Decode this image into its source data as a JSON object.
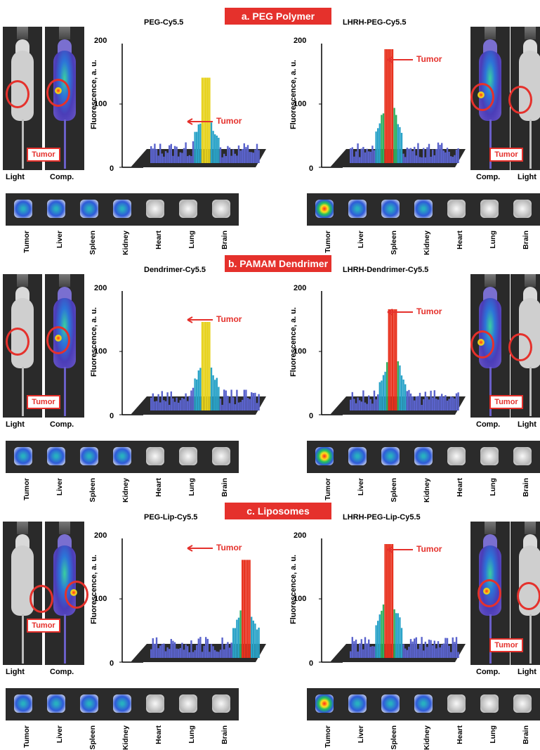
{
  "figure": {
    "y_axis_label": "Fluorescence, a. u.",
    "tumor_label": "Tumor",
    "light_label": "Light",
    "comp_label": "Comp.",
    "organs": [
      "Tumor",
      "Liver",
      "Spleen",
      "Kidney",
      "Heart",
      "Lung",
      "Brain"
    ],
    "y_ticks": [
      "0",
      "100",
      "200"
    ],
    "colors": {
      "accent": "#e5312c",
      "strip": "#2b2b2b"
    },
    "sections": [
      {
        "banner": "a.    PEG Polymer",
        "left_plot": {
          "title": "PEG-Cy5.5"
        },
        "right_plot": {
          "title": "LHRH-PEG-Cy5.5"
        }
      },
      {
        "banner": "b.    PAMAM Dendrimer",
        "left_plot": {
          "title": "Dendrimer-Cy5.5"
        },
        "right_plot": {
          "title": "LHRH-Dendrimer-Cy5.5"
        }
      },
      {
        "banner": "c.    Liposomes",
        "left_plot": {
          "title": "PEG-Lip-Cy5.5"
        },
        "right_plot": {
          "title": "LHRH-PEG-Lip-Cy5.5"
        }
      }
    ]
  },
  "chart_data": [
    {
      "type": "area",
      "title": "PEG-Cy5.5",
      "ylabel": "Fluorescence, a. u.",
      "ylim": [
        0,
        200
      ],
      "peak_tumor": 135,
      "peak_label": "Tumor",
      "annotation_y": 72
    },
    {
      "type": "area",
      "title": "LHRH-PEG-Cy5.5",
      "ylabel": "Fluorescence, a. u.",
      "ylim": [
        0,
        200
      ],
      "peak_tumor": 180,
      "peak_label": "Tumor",
      "annotation_y": 170
    },
    {
      "type": "area",
      "title": "Dendrimer-Cy5.5",
      "ylabel": "Fluorescence, a. u.",
      "ylim": [
        0,
        200
      ],
      "peak_tumor": 140,
      "peak_label": "Tumor",
      "annotation_y": 150
    },
    {
      "type": "area",
      "title": "LHRH-Dendrimer-Cy5.5",
      "ylabel": "Fluorescence, a. u.",
      "ylim": [
        0,
        200
      ],
      "peak_tumor": 160,
      "peak_label": "Tumor",
      "annotation_y": 162
    },
    {
      "type": "area",
      "title": "PEG-Lip-Cy5.5",
      "ylabel": "Fluorescence, a. u.",
      "ylim": [
        0,
        200
      ],
      "peak_tumor": 155,
      "peak_label": "Tumor",
      "annotation_y": 180
    },
    {
      "type": "area",
      "title": "LHRH-PEG-Lip-Cy5.5",
      "ylabel": "Fluorescence, a. u.",
      "ylim": [
        0,
        200
      ],
      "peak_tumor": 180,
      "peak_label": "Tumor",
      "annotation_y": 178
    }
  ]
}
